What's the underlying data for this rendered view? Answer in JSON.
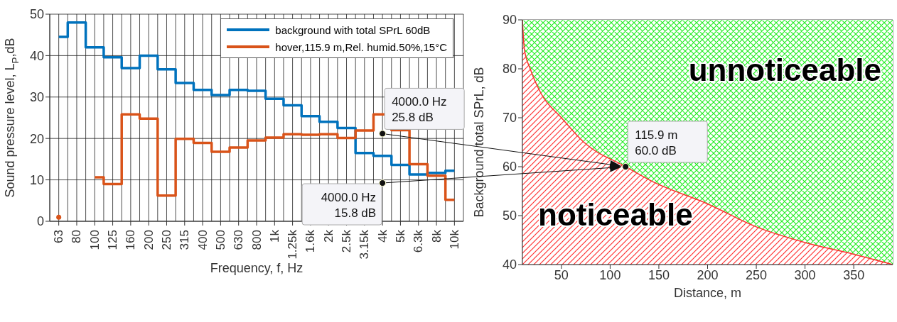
{
  "chart_data": [
    {
      "type": "step",
      "xlabel": "Frequency, f, Hz",
      "ylabel": "Sound pressure level, L$_{P}$,dB",
      "categories": [
        "63",
        "80",
        "100",
        "125",
        "160",
        "200",
        "250",
        "315",
        "400",
        "500",
        "630",
        "800",
        "1k",
        "1.25k",
        "1.6k",
        "2k",
        "2.5k",
        "3.15k",
        "4k",
        "5k",
        "6.3k",
        "8k",
        "10k"
      ],
      "series": [
        {
          "name": "background with total SPrL 60dB",
          "color": "#0072bd",
          "values": [
            44.5,
            48,
            42,
            39.6,
            37,
            40,
            36.7,
            33.4,
            31.7,
            30.5,
            31.7,
            31.5,
            29.6,
            28,
            25.4,
            24,
            22.5,
            16.5,
            15.8,
            13.6,
            11.3,
            11.7,
            12.2
          ]
        },
        {
          "name": "hover,115.9 m,Rel. humid.50%,15°C",
          "color": "#d95319",
          "values": [
            1,
            null,
            10.6,
            9,
            25.8,
            24.8,
            6.2,
            19.9,
            18.9,
            16.8,
            17.8,
            19.5,
            20.2,
            21,
            20.9,
            21,
            20.1,
            21.9,
            25.8,
            22,
            13.8,
            11,
            5.2
          ]
        }
      ],
      "ylim": [
        0,
        50
      ],
      "yticks": [
        0,
        10,
        20,
        30,
        40,
        50
      ],
      "grid": true,
      "legend": "top right",
      "annotations": [
        {
          "text": "4000.0 Hz\n25.8 dB",
          "x": "4k",
          "y": 25.8
        },
        {
          "text": "4000.0 Hz\n15.8 dB",
          "x": "4k",
          "y": 15.8
        }
      ]
    },
    {
      "type": "area",
      "xlabel": "Distance, m",
      "ylabel": "Background total SPrL, dB",
      "x": [
        10,
        12,
        18,
        29,
        50,
        73,
        115.9,
        143,
        200,
        250,
        300,
        350,
        390
      ],
      "series": [
        {
          "color": "#ff3030",
          "values": [
            90,
            84,
            80,
            75,
            70,
            65,
            60,
            57,
            52.4,
            47.7,
            44.5,
            42.1,
            40
          ]
        }
      ],
      "xlim": [
        10,
        390
      ],
      "xticks": [
        50,
        100,
        150,
        200,
        250,
        300,
        350
      ],
      "ylim": [
        40,
        90
      ],
      "yticks": [
        40,
        50,
        60,
        70,
        80,
        90
      ],
      "grid": true,
      "annotations": [
        {
          "text": "115.9 m\n60.0 dB",
          "x": 115.9,
          "y": 60
        },
        "unnoticeable",
        "noticeable"
      ]
    }
  ]
}
